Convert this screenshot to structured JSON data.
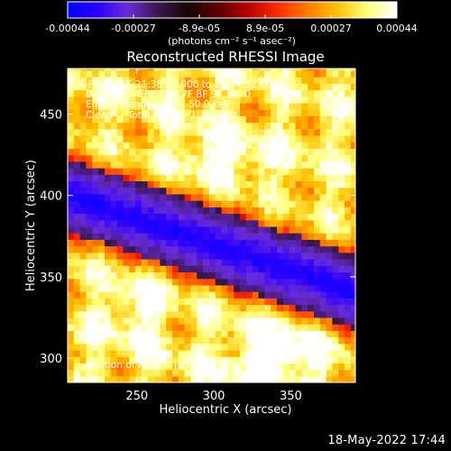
{
  "colorbar": {
    "ticks": [
      "-0.00044",
      "-0.00027",
      "-8.9e-05",
      "8.9e-05",
      "0.00027",
      "0.00044"
    ],
    "unit_label": "(photons cm⁻² s⁻¹ asec⁻²)",
    "stops": [
      "#0000ff",
      "#2a00ff",
      "#6a2bd8",
      "#3a1850",
      "#140808",
      "#5a0000",
      "#b40000",
      "#ff2a00",
      "#ff7a00",
      "#ffc000",
      "#ffff7a",
      "#ffffff"
    ]
  },
  "chart_data": {
    "type": "heatmap",
    "title": "Reconstructed RHESSI Image",
    "xlabel": "Heliocentric X (arcsec)",
    "ylabel": "Heliocentric Y (arcsec)",
    "xlim": [
      205,
      392
    ],
    "ylim": [
      285,
      478
    ],
    "xticks": [
      250,
      300,
      350
    ],
    "yticks": [
      300,
      350,
      400,
      450
    ],
    "annotations": [
      "4-Feb-2015 21:38:32.000 to 21:44:32.000",
      "Detectors: 3F 5F 6F 7F 8F 9F, Att 0",
      "Energy Range: 25.0 - 50.0 keV",
      "Clean     Total counts: 1.18E+04"
    ],
    "peak_label": "Position of Peak = [339,300]",
    "peak": [
      339,
      300
    ],
    "colorscale_range": [
      -0.00044,
      0.00044
    ]
  },
  "footer": {
    "date": "18-May-2022 17:44"
  }
}
